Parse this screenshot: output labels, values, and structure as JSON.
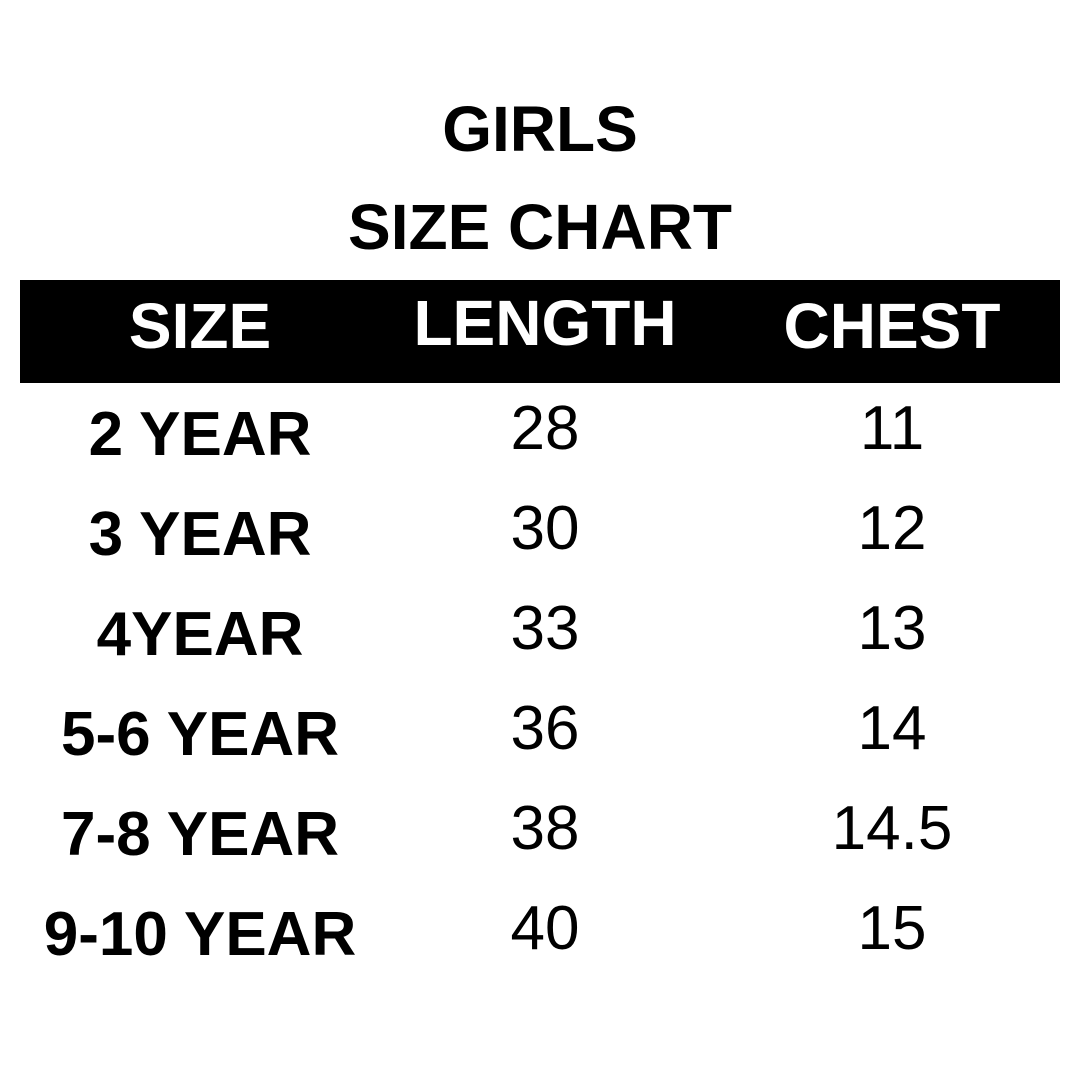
{
  "title": "GIRLS",
  "subtitle": "SIZE CHART",
  "columns": [
    "SIZE",
    "LENGTH",
    "CHEST"
  ],
  "rows": [
    [
      "2 YEAR",
      "28",
      "11"
    ],
    [
      "3 YEAR",
      "30",
      "12"
    ],
    [
      "4YEAR",
      "33",
      "13"
    ],
    [
      "5-6 YEAR",
      "36",
      "14"
    ],
    [
      "7-8 YEAR",
      "38",
      "14.5"
    ],
    [
      "9-10 YEAR",
      "40",
      "15"
    ]
  ],
  "colors": {
    "header_bg": "#000000",
    "header_text": "#ffffff"
  }
}
